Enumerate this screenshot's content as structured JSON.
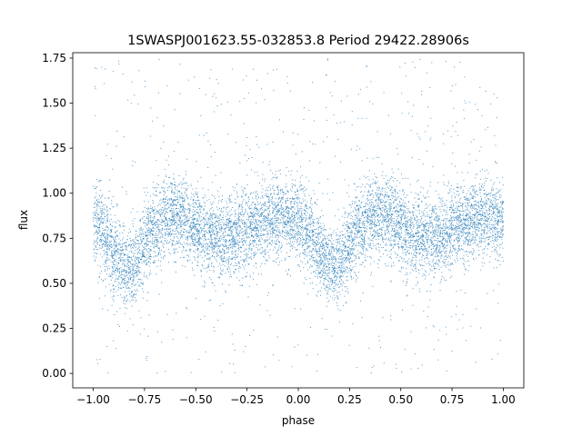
{
  "chart_data": {
    "type": "scatter",
    "title": "1SWASPJ001623.55-032853.8 Period 29422.28906s",
    "xlabel": "phase",
    "ylabel": "flux",
    "xlim": [
      -1.1,
      1.1
    ],
    "ylim": [
      -0.08,
      1.78
    ],
    "xticks": [
      -1.0,
      -0.75,
      -0.5,
      -0.25,
      0.0,
      0.25,
      0.5,
      0.75,
      1.0
    ],
    "xtick_labels": [
      "−1.00",
      "−0.75",
      "−0.50",
      "−0.25",
      "0.00",
      "0.25",
      "0.50",
      "0.75",
      "1.00"
    ],
    "yticks": [
      0.0,
      0.25,
      0.5,
      0.75,
      1.0,
      1.25,
      1.5,
      1.75
    ],
    "ytick_labels": [
      "0.00",
      "0.25",
      "0.50",
      "0.75",
      "1.00",
      "1.25",
      "1.50",
      "1.75"
    ],
    "grid": false,
    "point_color": "#1f77b4",
    "phase_range": [
      -1.0,
      1.0
    ],
    "point_count": 9000,
    "profile": {
      "phase": [
        0.0,
        0.05,
        0.1,
        0.15,
        0.18,
        0.2,
        0.25,
        0.3,
        0.35,
        0.4,
        0.45,
        0.5,
        0.55,
        0.6,
        0.65,
        0.7,
        0.75,
        0.8,
        0.85,
        0.9,
        0.95,
        1.0
      ],
      "flux": [
        0.84,
        0.78,
        0.68,
        0.6,
        0.58,
        0.6,
        0.72,
        0.82,
        0.87,
        0.89,
        0.87,
        0.82,
        0.77,
        0.75,
        0.75,
        0.77,
        0.8,
        0.84,
        0.86,
        0.86,
        0.86,
        0.84
      ]
    }
  }
}
